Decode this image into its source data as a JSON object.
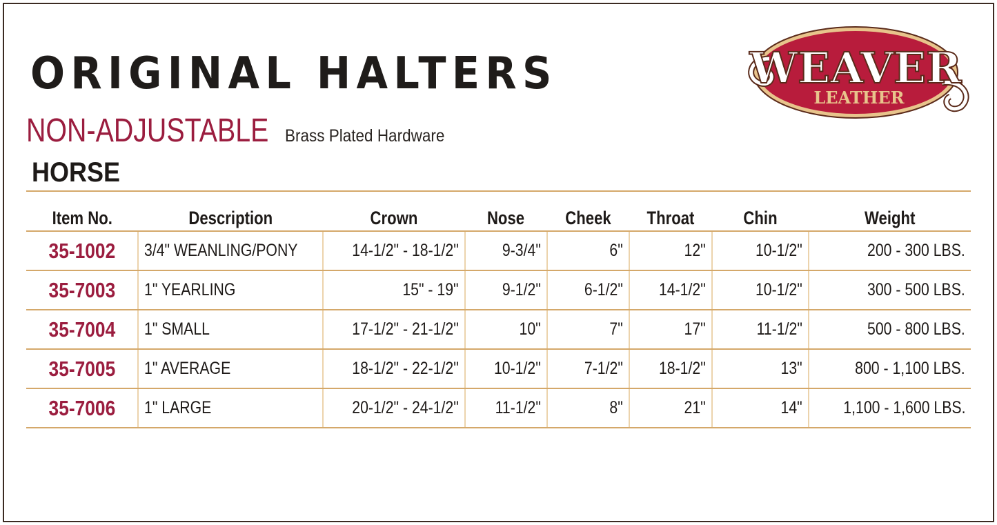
{
  "header": {
    "title": "ORIGINAL HALTERS",
    "subtitle": "NON-ADJUSTABLE",
    "subtitle_note": "Brass Plated Hardware",
    "section": "HORSE"
  },
  "logo": {
    "line1": "WEAVER",
    "line2": "LEATHER",
    "colors": {
      "red": "#b81c3c",
      "cream": "#e8c48c",
      "outline": "#5a2a1a"
    }
  },
  "colors": {
    "accent": "#9b1d3f",
    "rule": "#d4a86a",
    "frame": "#3b2a22"
  },
  "table": {
    "columns": [
      "Item No.",
      "Description",
      "Crown",
      "Nose",
      "Cheek",
      "Throat",
      "Chin",
      "Weight"
    ],
    "rows": [
      [
        "35-1002",
        "3/4\" WEANLING/PONY",
        "14-1/2\" - 18-1/2\"",
        "9-3/4\"",
        "6\"",
        "12\"",
        "10-1/2\"",
        "200 - 300 LBS."
      ],
      [
        "35-7003",
        "1\" YEARLING",
        "15\" - 19\"",
        "9-1/2\"",
        "6-1/2\"",
        "14-1/2\"",
        "10-1/2\"",
        "300 - 500 LBS."
      ],
      [
        "35-7004",
        "1\" SMALL",
        "17-1/2\" - 21-1/2\"",
        "10\"",
        "7\"",
        "17\"",
        "11-1/2\"",
        "500 - 800 LBS."
      ],
      [
        "35-7005",
        "1\" AVERAGE",
        "18-1/2\" - 22-1/2\"",
        "10-1/2\"",
        "7-1/2\"",
        "18-1/2\"",
        "13\"",
        "800 - 1,100 LBS."
      ],
      [
        "35-7006",
        "1\" LARGE",
        "20-1/2\" - 24-1/2\"",
        "11-1/2\"",
        "8\"",
        "21\"",
        "14\"",
        "1,100 - 1,600 LBS."
      ]
    ]
  }
}
